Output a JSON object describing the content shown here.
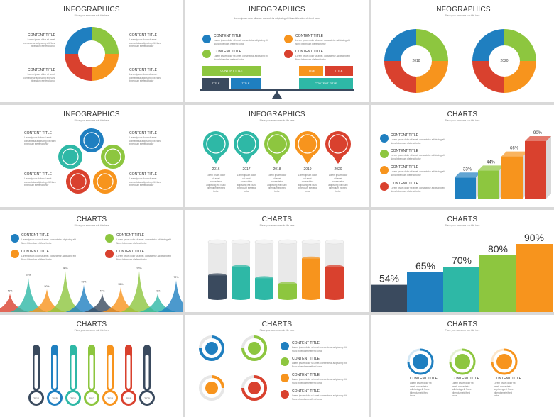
{
  "header": {
    "infographics": "INFOGRAPHICS",
    "charts": "CHARTS",
    "subtitle": "Place your awesome sub title here"
  },
  "common": {
    "content_title": "CONTENT TITLE",
    "body_text": "Lorem ipsum dolor sit amet. consectetur adipiscing elit Nunc bibendum eleifend tortor"
  },
  "balance": {
    "left_top": "CONTENT TITLE",
    "left_a": "TITLE",
    "left_b": "TITLE",
    "right_a": "TITLE",
    "right_b": "TITLE",
    "right_bottom": "CONTENT TITLE"
  },
  "ring_years": {
    "left": "2018",
    "right": "2020"
  },
  "pins": {
    "years": [
      "2016",
      "2017",
      "2018",
      "2019",
      "2020"
    ],
    "body": "Lorem ipsum dolor sit amet consectetur adipiscing elit Nunc bibendum eleifend tortor"
  },
  "cube_chart": {
    "type": "bar",
    "title": "CHARTS",
    "values": [
      33,
      44,
      66,
      90
    ],
    "labels": [
      "33%",
      "44%",
      "66%",
      "90%"
    ]
  },
  "mountain_chart": {
    "type": "area",
    "title": "CHARTS",
    "labels": [
      "40%",
      "75%",
      "50%",
      "90%",
      "60%",
      "40%",
      "55%",
      "90%",
      "40%",
      "70%"
    ]
  },
  "cylinder_chart": {
    "type": "bar",
    "title": "CHARTS",
    "levels": [
      0.4,
      0.55,
      0.35,
      0.25,
      0.7,
      0.55
    ]
  },
  "step_chart": {
    "type": "bar",
    "title": "CHARTS",
    "values": [
      54,
      65,
      70,
      80,
      90
    ],
    "labels": [
      "54%",
      "65%",
      "70%",
      "80%",
      "90%"
    ]
  },
  "thermo_chart": {
    "type": "bar",
    "title": "CHARTS",
    "years": [
      "2014",
      "2015",
      "2016",
      "2017",
      "2018",
      "2019",
      "2020"
    ]
  },
  "colors": {
    "blue": "#1f7fc0",
    "green": "#8dc63f",
    "orange": "#f7941d",
    "red": "#d9412e",
    "teal": "#2eb8a6",
    "navy": "#3a4a5e"
  }
}
